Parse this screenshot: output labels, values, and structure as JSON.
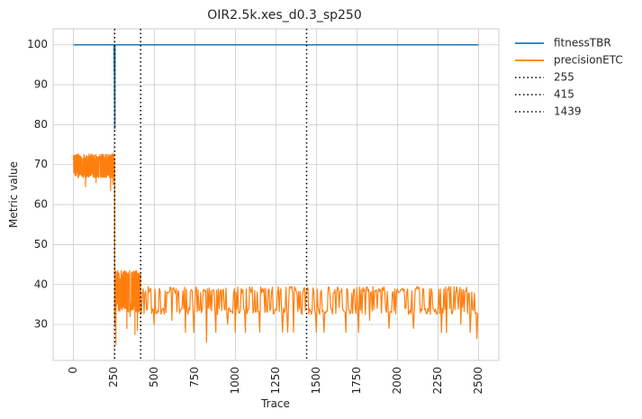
{
  "chart_data": {
    "type": "line",
    "title": "OIR2.5k.xes_d0.3_sp250",
    "xlabel": "Trace",
    "ylabel": "Metric value",
    "xlim": [
      -125,
      2625
    ],
    "ylim": [
      21,
      104
    ],
    "grid": true,
    "legend_position": "outside-right-top",
    "x_ticks": [
      0,
      250,
      500,
      750,
      1000,
      1250,
      1500,
      1750,
      2000,
      2250,
      2500
    ],
    "x_tick_labels": [
      "0",
      "250",
      "500",
      "750",
      "1000",
      "1250",
      "1500",
      "1750",
      "2000",
      "2250",
      "2500"
    ],
    "y_ticks": [
      30,
      40,
      50,
      60,
      70,
      80,
      90,
      100
    ],
    "y_tick_labels": [
      "30",
      "40",
      "50",
      "60",
      "70",
      "80",
      "90",
      "100"
    ],
    "series": [
      {
        "name": "fitnessTBR",
        "color": "#1f77b4",
        "x": [
          0,
          250,
          252,
          253,
          254,
          255,
          256,
          257,
          258,
          260,
          2500
        ],
        "y": [
          100,
          100,
          93,
          100,
          86,
          100,
          79,
          100,
          100,
          100,
          100
        ]
      },
      {
        "name": "precisionETC",
        "color": "#ff7f0e",
        "segments": [
          {
            "x_range": [
              0,
              255
            ],
            "low": 66.7,
            "high": 72.7,
            "dips": [
              [
                75,
                64.5
              ],
              [
                140,
                65.5
              ],
              [
                230,
                63.5
              ],
              [
                245,
                65
              ]
            ]
          },
          {
            "x_range": [
              255,
              256
            ],
            "low": 25,
            "high": 72
          },
          {
            "x_range": [
              256,
              415
            ],
            "low": 33,
            "high": 43.5,
            "dips": [
              [
                262,
                25
              ],
              [
                330,
                29
              ],
              [
                350,
                32
              ],
              [
                380,
                27.5
              ],
              [
                395,
                28.5
              ]
            ]
          },
          {
            "x_range": [
              415,
              2500
            ],
            "low": 32.5,
            "high": 39.5,
            "dips": [
              [
                500,
                30
              ],
              [
                610,
                31
              ],
              [
                690,
                28
              ],
              [
                745,
                28
              ],
              [
                820,
                25.5
              ],
              [
                880,
                28
              ],
              [
                950,
                30
              ],
              [
                1000,
                28
              ],
              [
                1060,
                28
              ],
              [
                1150,
                28
              ],
              [
                1290,
                28
              ],
              [
                1320,
                28
              ],
              [
                1360,
                28
              ],
              [
                1500,
                28
              ],
              [
                1545,
                28
              ],
              [
                1680,
                28
              ],
              [
                1760,
                28
              ],
              [
                1825,
                31
              ],
              [
                1950,
                29
              ],
              [
                2100,
                29
              ],
              [
                2270,
                28
              ],
              [
                2300,
                28
              ],
              [
                2390,
                30
              ],
              [
                2450,
                28
              ],
              [
                2490,
                26.5
              ]
            ]
          }
        ]
      }
    ],
    "vlines": [
      {
        "name": "255",
        "x": 255,
        "color": "#000000",
        "style": "dotted"
      },
      {
        "name": "415",
        "x": 415,
        "color": "#000000",
        "style": "dotted"
      },
      {
        "name": "1439",
        "x": 1439,
        "color": "#000000",
        "style": "dotted"
      }
    ]
  }
}
